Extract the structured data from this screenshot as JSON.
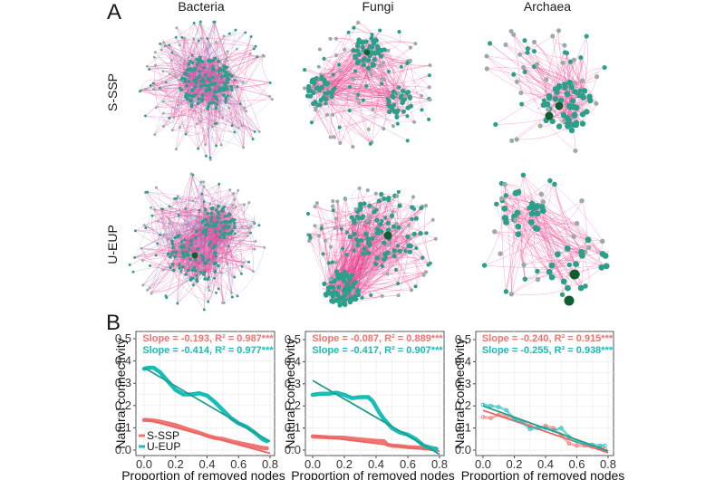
{
  "figure": {
    "panel_a_letter": "A",
    "panel_b_letter": "B",
    "columns": [
      "Bacteria",
      "Fungi",
      "Archaea"
    ],
    "rows": [
      "S-SSP",
      "U-EUP"
    ]
  },
  "colors": {
    "s_ssp": "#f07470",
    "u_eup": "#17bdb6",
    "edge_pink": "#ee3f8c",
    "edge_blue": "#8a9ad8",
    "node_teal": "#2aa08a",
    "node_gray": "#9aaaa8",
    "hub_dark": "#0f5e2e"
  },
  "networks": [
    {
      "group": "Bacteria",
      "row": "S-SSP",
      "density": "very-high"
    },
    {
      "group": "Fungi",
      "row": "S-SSP",
      "density": "medium"
    },
    {
      "group": "Archaea",
      "row": "S-SSP",
      "density": "low"
    },
    {
      "group": "Bacteria",
      "row": "U-EUP",
      "density": "very-high"
    },
    {
      "group": "Fungi",
      "row": "U-EUP",
      "density": "high"
    },
    {
      "group": "Archaea",
      "row": "U-EUP",
      "density": "low"
    }
  ],
  "chart_data": [
    {
      "type": "line",
      "panel": "Bacteria",
      "xlabel": "Proportion of removed nodes",
      "ylabel": "Natural connectivity",
      "xlim": [
        0,
        0.8
      ],
      "ylim": [
        0,
        0.5
      ],
      "xticks": [
        "0.0",
        "0.2",
        "0.4",
        "0.6",
        "0.8"
      ],
      "yticks": [
        "0.0",
        "0.1",
        "0.2",
        "0.3",
        "0.4",
        "0.5"
      ],
      "grid": true,
      "legend": {
        "position": "bottom-left",
        "entries": [
          "S-SSP",
          "U-EUP"
        ]
      },
      "annotations": [
        "Slope = -0.193, R² = 0.987***",
        "Slope = -0.414, R² = 0.977***"
      ],
      "series": [
        {
          "name": "S-SSP",
          "x": [
            0,
            0.05,
            0.1,
            0.15,
            0.2,
            0.25,
            0.3,
            0.35,
            0.4,
            0.45,
            0.5,
            0.55,
            0.6,
            0.65,
            0.7,
            0.75,
            0.78
          ],
          "values": [
            0.135,
            0.134,
            0.128,
            0.12,
            0.112,
            0.1,
            0.088,
            0.078,
            0.065,
            0.055,
            0.05,
            0.04,
            0.032,
            0.025,
            0.018,
            0.01,
            0.008
          ],
          "fit": {
            "slope": -0.193,
            "r2": 0.987,
            "intercept": 0.14
          }
        },
        {
          "name": "U-EUP",
          "x": [
            0,
            0.03,
            0.06,
            0.1,
            0.15,
            0.2,
            0.25,
            0.3,
            0.35,
            0.4,
            0.45,
            0.5,
            0.55,
            0.6,
            0.65,
            0.7,
            0.75,
            0.78
          ],
          "values": [
            0.365,
            0.37,
            0.37,
            0.35,
            0.31,
            0.27,
            0.25,
            0.25,
            0.255,
            0.245,
            0.215,
            0.18,
            0.145,
            0.12,
            0.105,
            0.08,
            0.05,
            0.04
          ],
          "fit": {
            "slope": -0.414,
            "r2": 0.977,
            "intercept": 0.37
          }
        }
      ]
    },
    {
      "type": "line",
      "panel": "Fungi",
      "xlabel": "Proportion of removed nodes",
      "ylabel": "Natural connectivity",
      "xlim": [
        0,
        0.8
      ],
      "ylim": [
        0,
        0.5
      ],
      "xticks": [
        "0.0",
        "0.2",
        "0.4",
        "0.6",
        "0.8"
      ],
      "yticks": [
        "0.0",
        "0.1",
        "0.2",
        "0.3",
        "0.4",
        "0.5"
      ],
      "grid": true,
      "annotations": [
        "Slope = -0.087, R² = 0.889***",
        "Slope = -0.417, R² = 0.907***"
      ],
      "series": [
        {
          "name": "S-SSP",
          "x": [
            0,
            0.05,
            0.1,
            0.15,
            0.2,
            0.25,
            0.3,
            0.35,
            0.4,
            0.45,
            0.47,
            0.5,
            0.55,
            0.6,
            0.65,
            0.7,
            0.75,
            0.78
          ],
          "values": [
            0.062,
            0.06,
            0.058,
            0.057,
            0.056,
            0.052,
            0.048,
            0.045,
            0.042,
            0.04,
            0.025,
            0.02,
            0.018,
            0.014,
            0.012,
            0.01,
            0.008,
            0.006
          ],
          "fit": {
            "slope": -0.087,
            "r2": 0.889,
            "intercept": 0.065
          }
        },
        {
          "name": "U-EUP",
          "x": [
            0,
            0.05,
            0.1,
            0.15,
            0.2,
            0.25,
            0.3,
            0.35,
            0.38,
            0.42,
            0.45,
            0.5,
            0.55,
            0.6,
            0.65,
            0.7,
            0.75,
            0.78
          ],
          "values": [
            0.25,
            0.255,
            0.255,
            0.26,
            0.25,
            0.235,
            0.24,
            0.24,
            0.22,
            0.17,
            0.14,
            0.1,
            0.08,
            0.07,
            0.05,
            0.02,
            0.01,
            0.005
          ],
          "fit": {
            "slope": -0.417,
            "r2": 0.907,
            "intercept": 0.315
          }
        }
      ]
    },
    {
      "type": "scatter",
      "panel": "Archaea",
      "xlabel": "Proportion of removed nodes",
      "ylabel": "Natural connectivity",
      "xlim": [
        0,
        0.8
      ],
      "ylim": [
        0,
        0.5
      ],
      "xticks": [
        "0.0",
        "0.2",
        "0.4",
        "0.6",
        "0.8"
      ],
      "yticks": [
        "0.0",
        "0.1",
        "0.2",
        "0.3",
        "0.4",
        "0.5"
      ],
      "grid": true,
      "annotations": [
        "Slope = -0.240, R² = 0.915***",
        "Slope = -0.255, R² = 0.938***"
      ],
      "series": [
        {
          "name": "S-SSP",
          "x": [
            0,
            0.05,
            0.1,
            0.15,
            0.2,
            0.25,
            0.3,
            0.35,
            0.4,
            0.45,
            0.5,
            0.55,
            0.6,
            0.65,
            0.7,
            0.75,
            0.78
          ],
          "values": [
            0.15,
            0.145,
            0.16,
            0.155,
            0.14,
            0.13,
            0.11,
            0.1,
            0.11,
            0.1,
            0.07,
            0.03,
            0.02,
            0.02,
            0.015,
            0.01,
            0.005
          ],
          "fit": {
            "slope": -0.24,
            "r2": 0.915,
            "intercept": 0.18
          }
        },
        {
          "name": "U-EUP",
          "x": [
            0,
            0.05,
            0.1,
            0.15,
            0.2,
            0.25,
            0.3,
            0.35,
            0.4,
            0.45,
            0.5,
            0.55,
            0.6,
            0.65,
            0.7,
            0.75,
            0.78
          ],
          "values": [
            0.205,
            0.2,
            0.195,
            0.18,
            0.14,
            0.13,
            0.095,
            0.1,
            0.1,
            0.09,
            0.1,
            0.06,
            0.04,
            0.03,
            0.025,
            0.02,
            0.02
          ],
          "fit": {
            "slope": -0.255,
            "r2": 0.938,
            "intercept": 0.2
          }
        }
      ]
    }
  ]
}
